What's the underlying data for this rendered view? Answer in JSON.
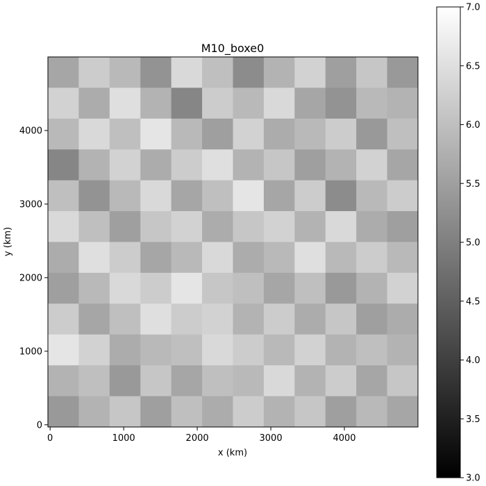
{
  "chart_data": {
    "type": "heatmap",
    "title": "M10_boxe0",
    "xlabel": "x (km)",
    "ylabel": "y (km)",
    "xlim": [
      -30,
      5000
    ],
    "ylim": [
      -30,
      5000
    ],
    "x_ticks": [
      0,
      1000,
      2000,
      3000,
      4000
    ],
    "y_ticks": [
      0,
      1000,
      2000,
      3000,
      4000
    ],
    "x_tick_labels": [
      "0",
      "1000",
      "2000",
      "3000",
      "4000"
    ],
    "y_tick_labels": [
      "0",
      "1000",
      "2000",
      "3000",
      "4000"
    ],
    "colormap": "gray",
    "colorbar": {
      "vmin": 3.0,
      "vmax": 7.0,
      "ticks": [
        3.0,
        3.5,
        4.0,
        4.5,
        5.0,
        5.5,
        6.0,
        6.5,
        7.0
      ],
      "tick_labels": [
        "3.0",
        "3.5",
        "4.0",
        "4.5",
        "5.0",
        "5.5",
        "6.0",
        "6.5",
        "7.0"
      ]
    },
    "grid": false,
    "field_description_values": {
      "grid_size": [
        12,
        12
      ],
      "z": [
        [
          5.6,
          6.2,
          5.9,
          5.3,
          6.4,
          6.0,
          5.2,
          5.8,
          6.3,
          5.5,
          6.1,
          5.4
        ],
        [
          6.3,
          5.7,
          6.5,
          5.8,
          5.1,
          6.2,
          5.9,
          6.4,
          5.6,
          5.3,
          5.9,
          5.8
        ],
        [
          5.9,
          6.4,
          6.0,
          6.6,
          5.9,
          5.5,
          6.3,
          5.7,
          5.9,
          6.2,
          5.4,
          6.0
        ],
        [
          5.1,
          5.8,
          6.3,
          5.7,
          6.2,
          6.5,
          5.8,
          6.1,
          5.5,
          5.8,
          6.3,
          5.6
        ],
        [
          6.0,
          5.3,
          5.9,
          6.4,
          5.6,
          6.0,
          6.6,
          5.6,
          6.2,
          5.2,
          5.9,
          6.2
        ],
        [
          6.4,
          6.0,
          5.5,
          6.1,
          6.3,
          5.7,
          6.1,
          6.3,
          5.8,
          6.4,
          5.7,
          5.5
        ],
        [
          5.7,
          6.5,
          6.2,
          5.6,
          5.9,
          6.4,
          5.7,
          5.9,
          6.5,
          5.9,
          6.2,
          5.9
        ],
        [
          5.5,
          5.9,
          6.4,
          6.2,
          6.6,
          6.1,
          6.0,
          5.6,
          6.0,
          5.4,
          5.8,
          6.3
        ],
        [
          6.2,
          5.6,
          6.0,
          6.5,
          6.2,
          6.3,
          5.8,
          6.2,
          5.7,
          6.1,
          5.5,
          5.7
        ],
        [
          6.6,
          6.3,
          5.7,
          5.9,
          6.0,
          6.4,
          6.2,
          5.9,
          6.3,
          5.8,
          6.0,
          5.8
        ],
        [
          5.8,
          6.0,
          5.4,
          6.1,
          5.6,
          6.0,
          5.9,
          6.4,
          5.8,
          6.2,
          5.6,
          6.1
        ],
        [
          5.4,
          5.8,
          6.1,
          5.5,
          6.0,
          5.7,
          6.2,
          5.8,
          6.1,
          5.5,
          5.9,
          5.6
        ]
      ]
    }
  }
}
